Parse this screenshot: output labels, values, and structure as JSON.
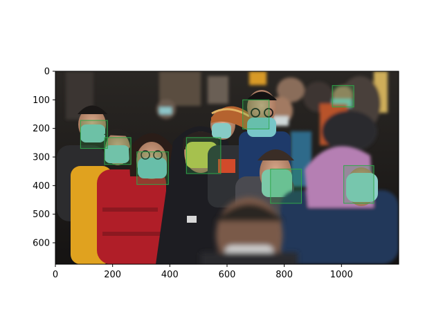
{
  "axes": {
    "xlim": [
      0,
      1200
    ],
    "ylim_top_to_bottom": [
      0,
      675
    ],
    "x_ticks": [
      0,
      200,
      400,
      600,
      800,
      1000
    ],
    "y_ticks": [
      0,
      100,
      200,
      300,
      400,
      500,
      600
    ],
    "x_tick_labels": [
      "0",
      "200",
      "400",
      "600",
      "800",
      "1000"
    ],
    "y_tick_labels": [
      "0",
      "100",
      "200",
      "300",
      "400",
      "500",
      "600"
    ]
  },
  "detection_box_color": "#2fa84a",
  "detections": [
    {
      "label": "face-mask",
      "x": 88,
      "y": 172,
      "w": 94,
      "h": 98
    },
    {
      "label": "face-mask",
      "x": 172,
      "y": 232,
      "w": 92,
      "h": 94
    },
    {
      "label": "face-mask",
      "x": 285,
      "y": 282,
      "w": 110,
      "h": 114
    },
    {
      "label": "face-mask",
      "x": 458,
      "y": 232,
      "w": 120,
      "h": 126
    },
    {
      "label": "face-mask",
      "x": 655,
      "y": 100,
      "w": 92,
      "h": 102
    },
    {
      "label": "face-mask",
      "x": 752,
      "y": 342,
      "w": 108,
      "h": 120
    },
    {
      "label": "face-mask",
      "x": 1008,
      "y": 330,
      "w": 105,
      "h": 132
    },
    {
      "label": "face-mask",
      "x": 968,
      "y": 50,
      "w": 75,
      "h": 75
    }
  ]
}
